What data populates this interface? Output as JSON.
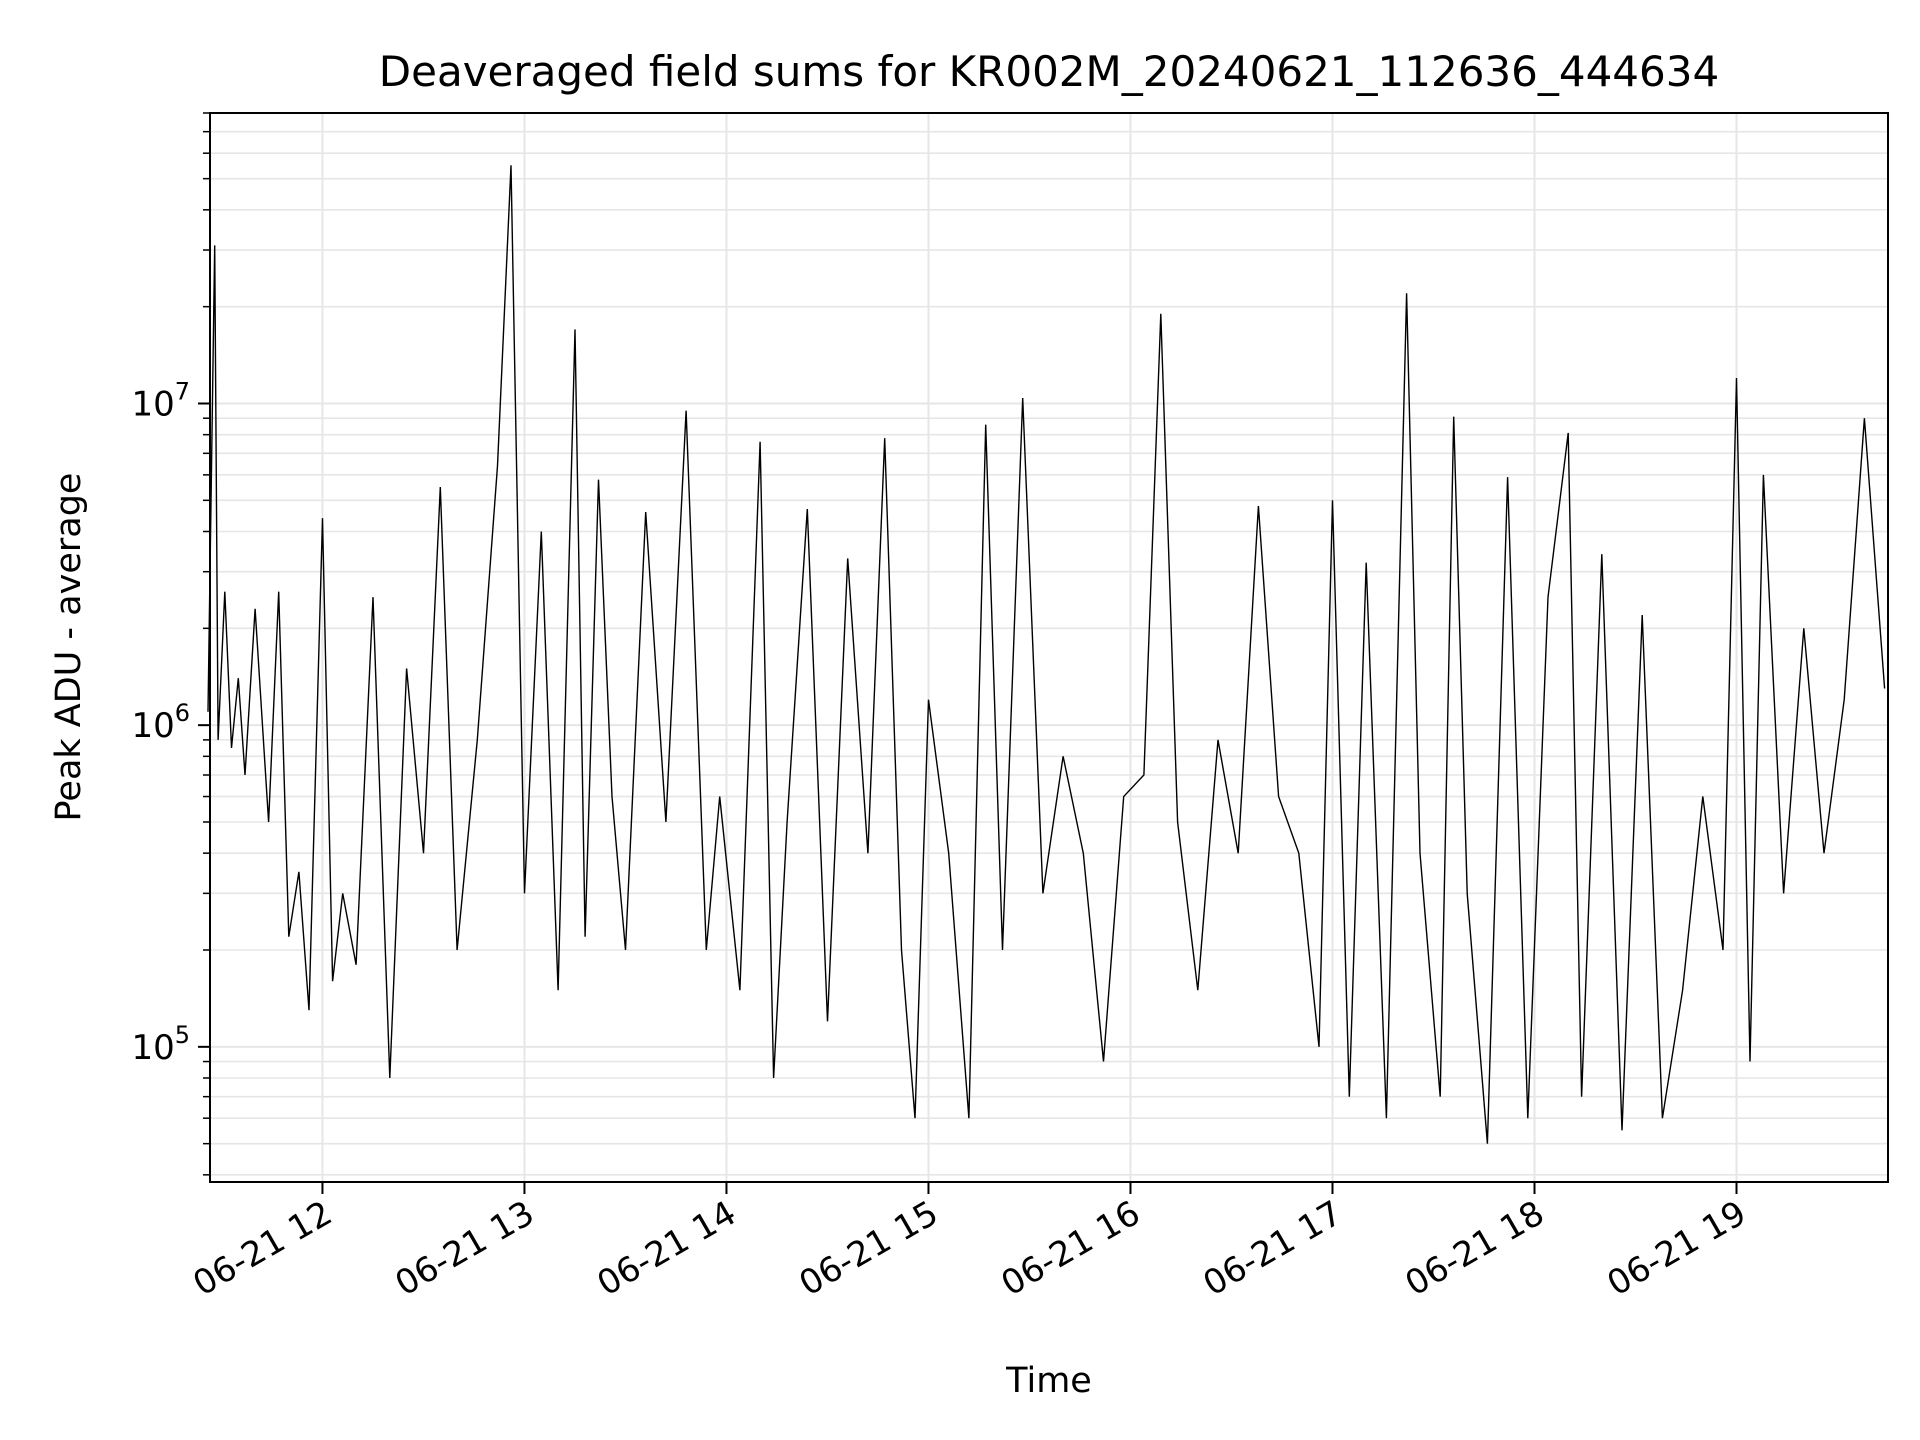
{
  "chart_data": {
    "type": "line",
    "title": "Deaveraged field sums for KR002M_20240621_112636_444634",
    "xlabel": "Time",
    "ylabel": "Peak ADU - average",
    "y_scale": "log",
    "ylim": [
      38000,
      80000000
    ],
    "xlim": [
      "2024-06-21 11:26:36",
      "2024-06-21 19:45:00"
    ],
    "grid": true,
    "line_color": "#000000",
    "x_tick_labels": [
      "06-21 12",
      "06-21 13",
      "06-21 14",
      "06-21 15",
      "06-21 16",
      "06-21 17",
      "06-21 18",
      "06-21 19"
    ],
    "x_ticks": [
      "2024-06-21 12:00",
      "2024-06-21 13:00",
      "2024-06-21 14:00",
      "2024-06-21 15:00",
      "2024-06-21 16:00",
      "2024-06-21 17:00",
      "2024-06-21 18:00",
      "2024-06-21 19:00"
    ],
    "y_major_ticks": [
      100000,
      1000000,
      10000000
    ],
    "y_major_tick_labels": [
      {
        "base": "10",
        "exp": "5"
      },
      {
        "base": "10",
        "exp": "6"
      },
      {
        "base": "10",
        "exp": "7"
      }
    ],
    "series": [
      {
        "x": [
          "2024-06-21 11:26",
          "2024-06-21 11:28",
          "2024-06-21 11:29",
          "2024-06-21 11:31",
          "2024-06-21 11:33",
          "2024-06-21 11:35",
          "2024-06-21 11:37",
          "2024-06-21 11:40",
          "2024-06-21 11:44",
          "2024-06-21 11:47",
          "2024-06-21 11:50",
          "2024-06-21 11:53",
          "2024-06-21 11:56",
          "2024-06-21 12:00",
          "2024-06-21 12:03",
          "2024-06-21 12:06",
          "2024-06-21 12:10",
          "2024-06-21 12:15",
          "2024-06-21 12:20",
          "2024-06-21 12:25",
          "2024-06-21 12:30",
          "2024-06-21 12:35",
          "2024-06-21 12:40",
          "2024-06-21 12:46",
          "2024-06-21 12:52",
          "2024-06-21 12:56",
          "2024-06-21 13:00",
          "2024-06-21 13:05",
          "2024-06-21 13:10",
          "2024-06-21 13:15",
          "2024-06-21 13:18",
          "2024-06-21 13:22",
          "2024-06-21 13:26",
          "2024-06-21 13:30",
          "2024-06-21 13:36",
          "2024-06-21 13:42",
          "2024-06-21 13:48",
          "2024-06-21 13:54",
          "2024-06-21 13:58",
          "2024-06-21 14:04",
          "2024-06-21 14:10",
          "2024-06-21 14:14",
          "2024-06-21 14:18",
          "2024-06-21 14:24",
          "2024-06-21 14:30",
          "2024-06-21 14:36",
          "2024-06-21 14:42",
          "2024-06-21 14:47",
          "2024-06-21 14:52",
          "2024-06-21 14:56",
          "2024-06-21 15:00",
          "2024-06-21 15:06",
          "2024-06-21 15:12",
          "2024-06-21 15:17",
          "2024-06-21 15:22",
          "2024-06-21 15:28",
          "2024-06-21 15:34",
          "2024-06-21 15:40",
          "2024-06-21 15:46",
          "2024-06-21 15:52",
          "2024-06-21 15:58",
          "2024-06-21 16:04",
          "2024-06-21 16:09",
          "2024-06-21 16:14",
          "2024-06-21 16:20",
          "2024-06-21 16:26",
          "2024-06-21 16:32",
          "2024-06-21 16:38",
          "2024-06-21 16:44",
          "2024-06-21 16:50",
          "2024-06-21 16:56",
          "2024-06-21 17:00",
          "2024-06-21 17:05",
          "2024-06-21 17:10",
          "2024-06-21 17:16",
          "2024-06-21 17:22",
          "2024-06-21 17:26",
          "2024-06-21 17:32",
          "2024-06-21 17:36",
          "2024-06-21 17:40",
          "2024-06-21 17:46",
          "2024-06-21 17:52",
          "2024-06-21 17:58",
          "2024-06-21 18:04",
          "2024-06-21 18:10",
          "2024-06-21 18:14",
          "2024-06-21 18:20",
          "2024-06-21 18:26",
          "2024-06-21 18:32",
          "2024-06-21 18:38",
          "2024-06-21 18:44",
          "2024-06-21 18:50",
          "2024-06-21 18:56",
          "2024-06-21 19:00",
          "2024-06-21 19:04",
          "2024-06-21 19:08",
          "2024-06-21 19:14",
          "2024-06-21 19:20",
          "2024-06-21 19:26",
          "2024-06-21 19:32",
          "2024-06-21 19:38",
          "2024-06-21 19:44"
        ],
        "values": [
          1100000,
          31000000,
          900000,
          2600000,
          850000,
          1400000,
          700000,
          2300000,
          500000,
          2600000,
          220000,
          350000,
          130000,
          4400000,
          160000,
          300000,
          180000,
          2500000,
          80000,
          1500000,
          400000,
          5500000,
          200000,
          900000,
          6400000,
          55000000,
          300000,
          4000000,
          150000,
          17000000,
          220000,
          5800000,
          600000,
          200000,
          4600000,
          500000,
          9500000,
          200000,
          600000,
          150000,
          7600000,
          80000,
          500000,
          4700000,
          120000,
          3300000,
          400000,
          7800000,
          200000,
          60000,
          1200000,
          400000,
          60000,
          8600000,
          200000,
          10400000,
          300000,
          800000,
          400000,
          90000,
          600000,
          700000,
          19000000,
          500000,
          150000,
          900000,
          400000,
          4800000,
          600000,
          400000,
          100000,
          5000000,
          70000,
          3200000,
          60000,
          22000000,
          400000,
          70000,
          9100000,
          300000,
          50000,
          5900000,
          60000,
          2500000,
          8100000,
          70000,
          3400000,
          55000,
          2200000,
          60000,
          150000,
          600000,
          200000,
          12000000,
          90000,
          6000000,
          300000,
          2000000,
          400000,
          1200000,
          9000000,
          1300000
        ]
      }
    ]
  }
}
